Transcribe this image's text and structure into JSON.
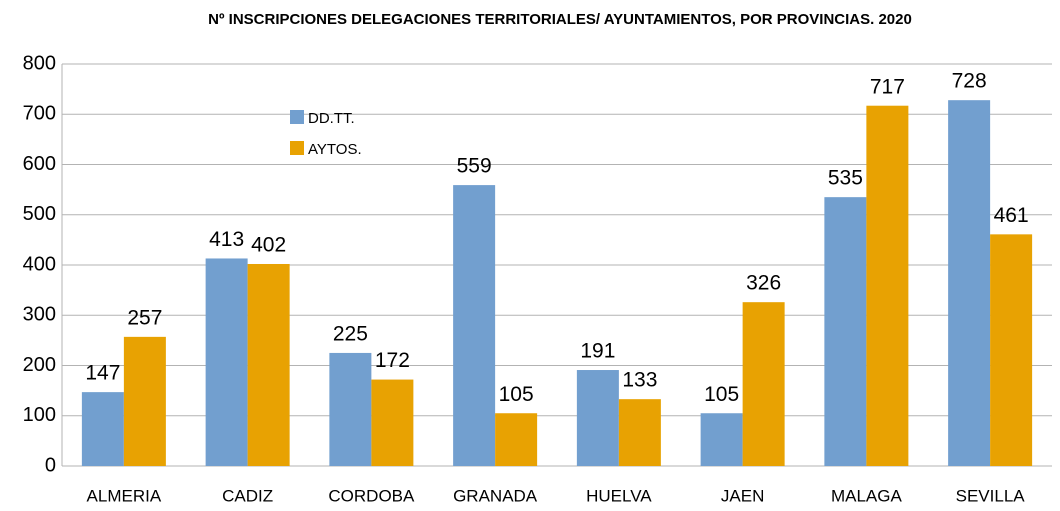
{
  "chart_data": {
    "type": "bar",
    "title": "Nº INSCRIPCIONES DELEGACIONES TERRITORIALES/ AYUNTAMIENTOS, POR PROVINCIAS. 2020",
    "categories": [
      "ALMERIA",
      "CADIZ",
      "CORDOBA",
      "GRANADA",
      "HUELVA",
      "JAEN",
      "MALAGA",
      "SEVILLA"
    ],
    "series": [
      {
        "name": "DD.TT.",
        "color": "#729fcf",
        "values": [
          147,
          413,
          225,
          559,
          191,
          105,
          535,
          728
        ]
      },
      {
        "name": "AYTOS.",
        "color": "#e8a202",
        "values": [
          257,
          402,
          172,
          105,
          133,
          326,
          717,
          461
        ]
      }
    ],
    "ylim": [
      0,
      800
    ],
    "yticks": [
      0,
      100,
      200,
      300,
      400,
      500,
      600,
      700,
      800
    ],
    "grid": true
  }
}
